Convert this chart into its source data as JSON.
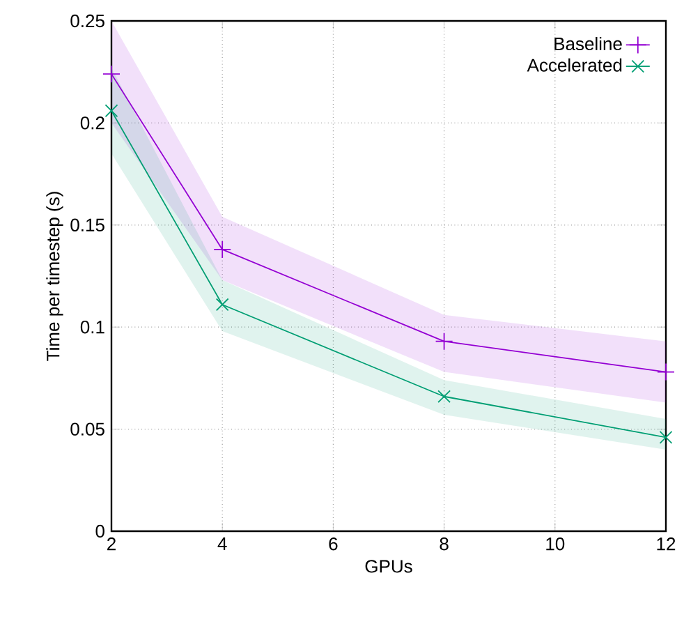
{
  "chart_data": {
    "type": "line",
    "xlabel": "GPUs",
    "ylabel": "Time per timestep (s)",
    "x": [
      2,
      4,
      8,
      12
    ],
    "series": [
      {
        "name": "Baseline",
        "color": "#9400d3",
        "marker": "plus",
        "values": [
          0.224,
          0.138,
          0.093,
          0.078
        ],
        "lower": [
          0.2,
          0.123,
          0.078,
          0.063
        ],
        "upper": [
          0.25,
          0.154,
          0.106,
          0.093
        ]
      },
      {
        "name": "Accelerated",
        "color": "#009e73",
        "marker": "cross",
        "values": [
          0.206,
          0.111,
          0.066,
          0.046
        ],
        "lower": [
          0.185,
          0.098,
          0.057,
          0.04
        ],
        "upper": [
          0.227,
          0.123,
          0.074,
          0.055
        ]
      }
    ],
    "xlim": [
      2,
      12
    ],
    "xticks": [
      2,
      4,
      6,
      8,
      10,
      12
    ],
    "ylim": [
      0,
      0.25
    ],
    "yticks": [
      0,
      0.05,
      0.1,
      0.15,
      0.2,
      0.25
    ],
    "grid": true,
    "legend": "top right",
    "line_style": "solid"
  }
}
